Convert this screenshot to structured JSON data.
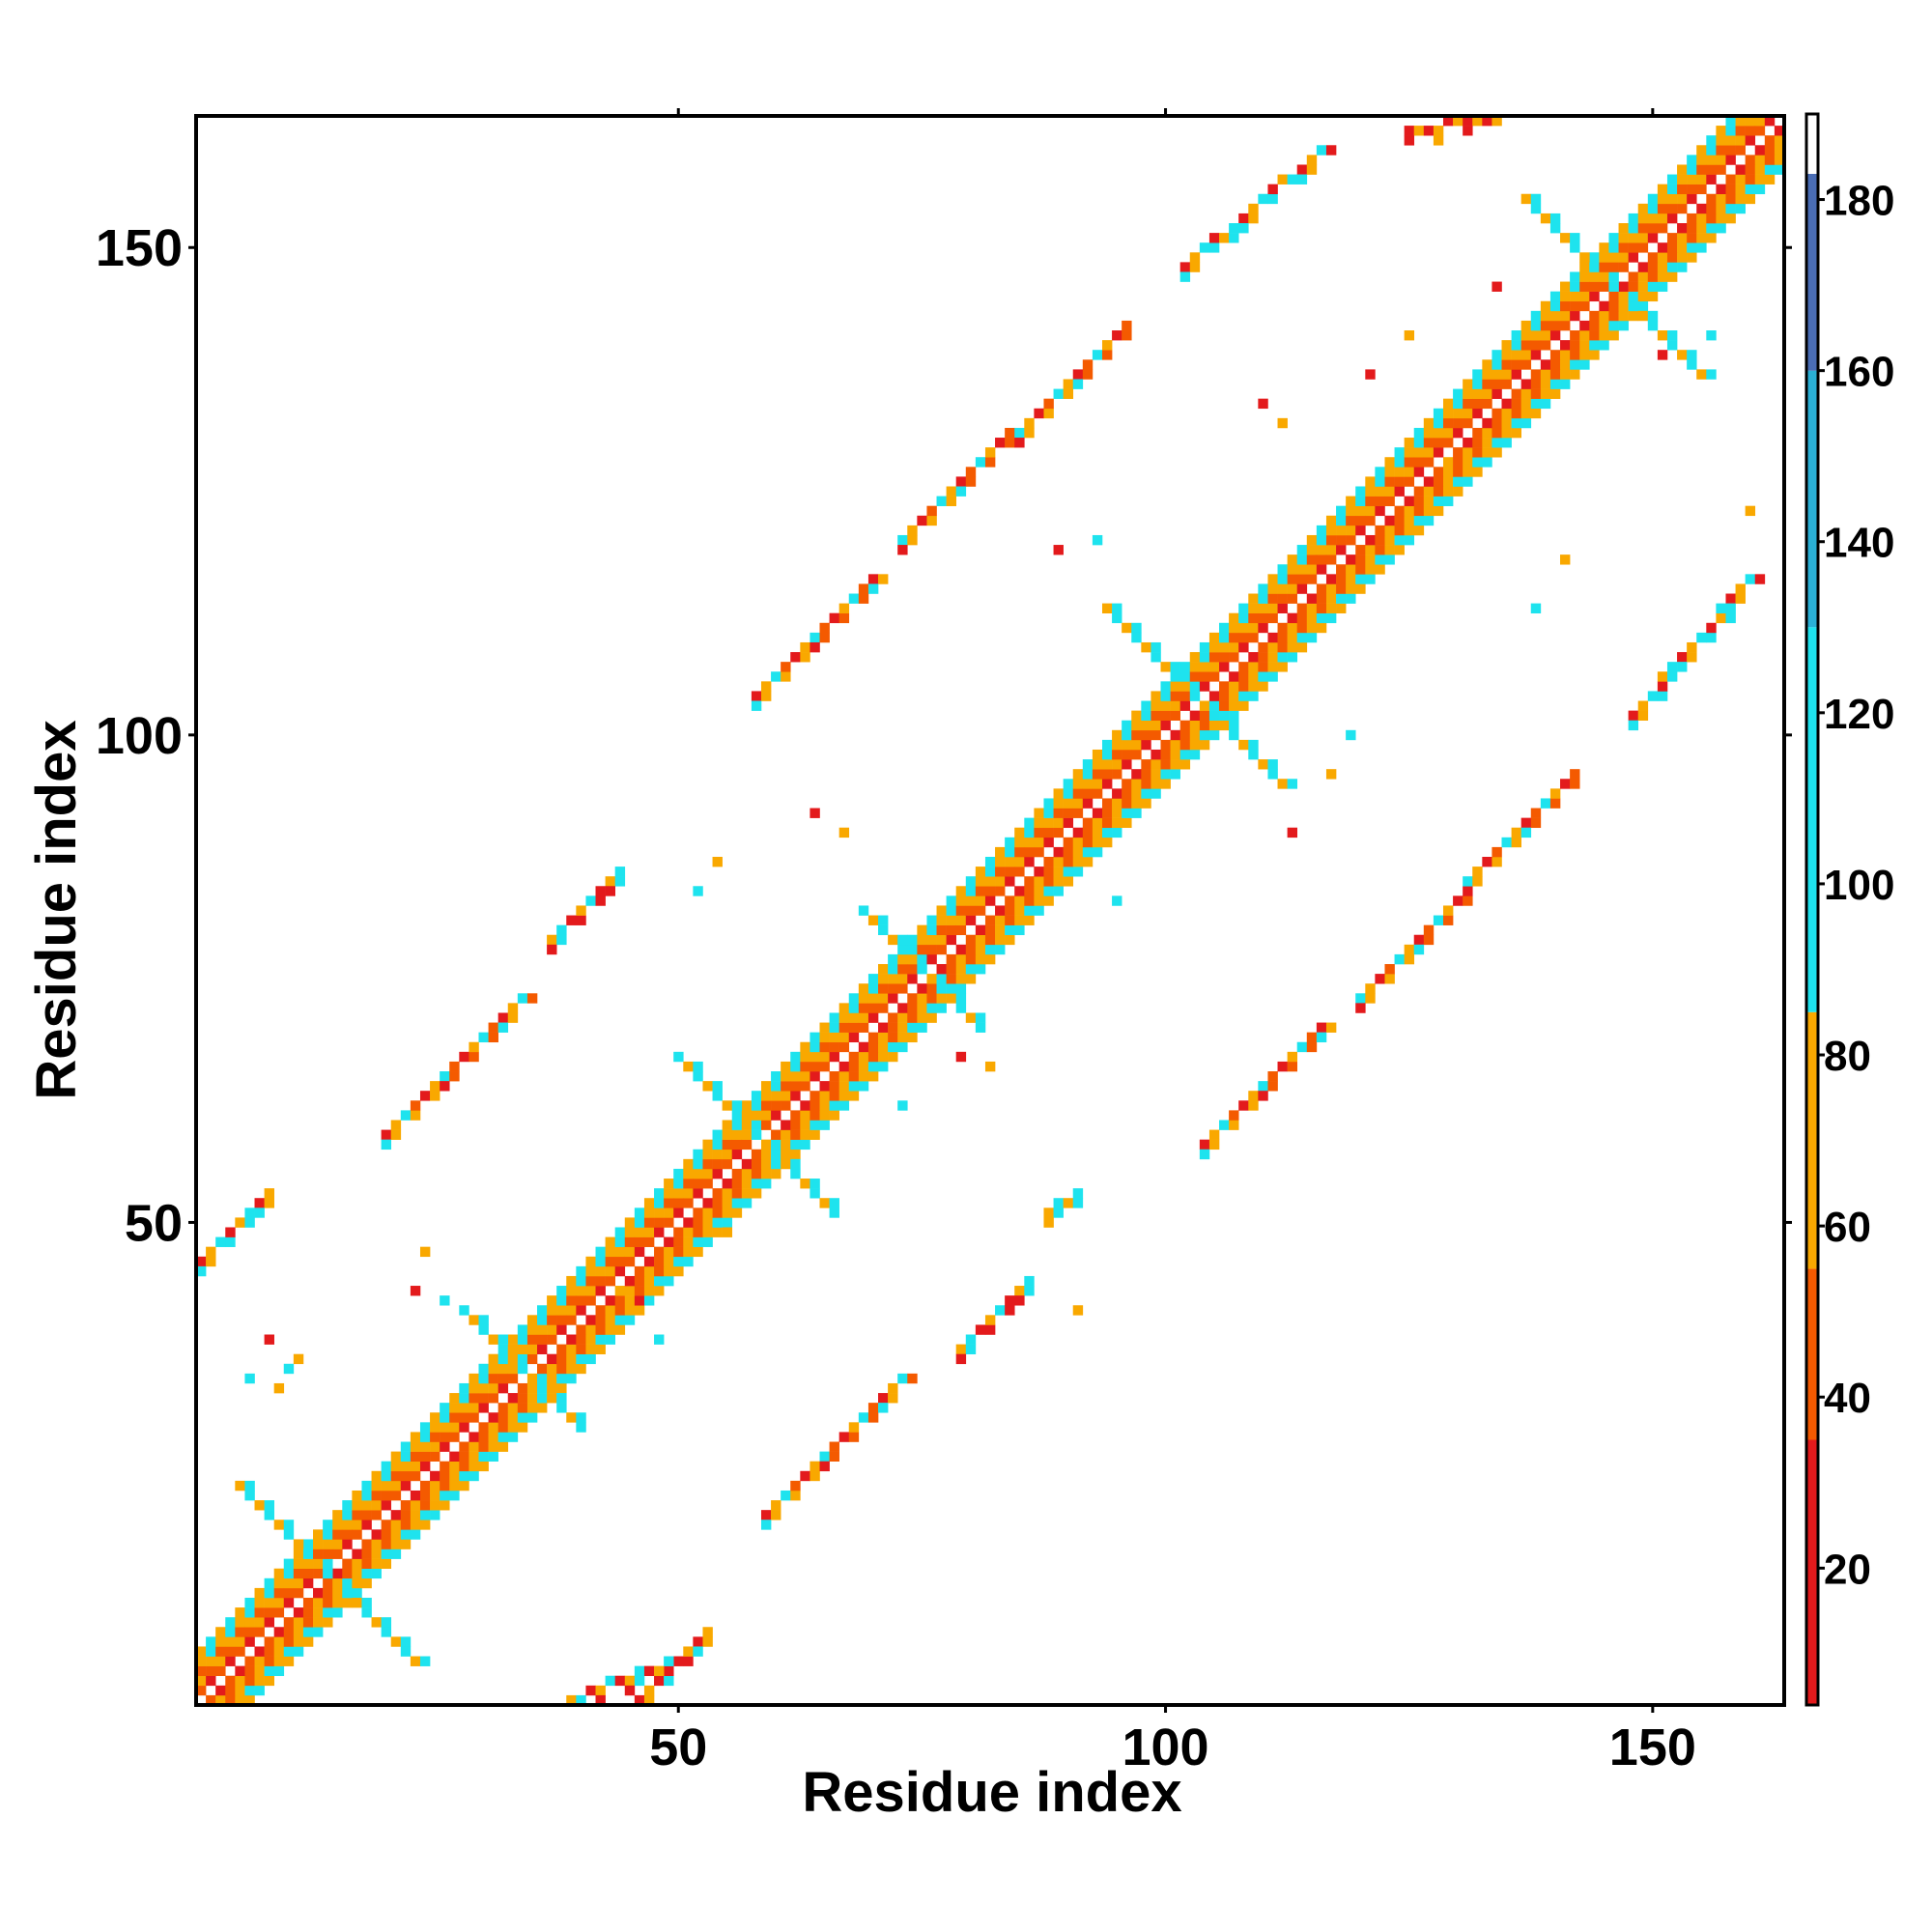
{
  "chart_data": {
    "type": "heatmap",
    "title": "",
    "xlabel": "Residue index",
    "ylabel": "Residue index",
    "xlim": [
      0.5,
      163.5
    ],
    "ylim": [
      0.5,
      163.5
    ],
    "x_ticks": [
      50,
      100,
      150
    ],
    "y_ticks": [
      50,
      100,
      150
    ],
    "x_tick_labels": [
      "50",
      "100",
      "150"
    ],
    "y_tick_labels": [
      "50",
      "100",
      "150"
    ],
    "grid": false,
    "legend": "colorbar right",
    "colorbar": {
      "range": [
        4,
        190
      ],
      "ticks": [
        20,
        40,
        60,
        80,
        100,
        120,
        140,
        160,
        180
      ],
      "tick_labels": [
        "20",
        "40",
        "60",
        "80",
        "100",
        "120",
        "140",
        "160",
        "180"
      ],
      "colors": [
        {
          "from": 4,
          "to": 35,
          "color": "#e31a1c"
        },
        {
          "from": 35,
          "to": 55,
          "color": "#f45a00"
        },
        {
          "from": 55,
          "to": 85,
          "color": "#f9a800"
        },
        {
          "from": 85,
          "to": 130,
          "color": "#1ee3ee"
        },
        {
          "from": 130,
          "to": 160,
          "color": "#2ab0d6"
        },
        {
          "from": 160,
          "to": 183,
          "color": "#4a6db5"
        },
        {
          "from": 183,
          "to": 190,
          "color": "#ffffff"
        }
      ]
    },
    "diagonal": {
      "from": 1,
      "to": 163,
      "bands": [
        {
          "offset": 1,
          "value": 15
        },
        {
          "offset": 2,
          "value": 40
        },
        {
          "offset": 3,
          "value": 70
        },
        {
          "offset": 4,
          "value": 105
        },
        {
          "offset": 5,
          "value": 110
        }
      ]
    },
    "segments": [
      {
        "from": [
          20,
          59
        ],
        "to": [
          34,
          73
        ],
        "values": [
          20,
          70,
          110,
          40
        ]
      },
      {
        "from": [
          37,
          79
        ],
        "to": [
          44,
          86
        ],
        "values": [
          70,
          110,
          20
        ]
      },
      {
        "from": [
          58,
          104
        ],
        "to": [
          70,
          116
        ],
        "values": [
          20,
          70,
          110,
          40
        ]
      },
      {
        "from": [
          73,
          120
        ],
        "to": [
          96,
          142
        ],
        "values": [
          110,
          70,
          20,
          40
        ]
      },
      {
        "from": [
          102,
          148
        ],
        "to": [
          116,
          160
        ],
        "values": [
          20,
          70,
          110
        ]
      },
      {
        "from": [
          125,
          162
        ],
        "to": [
          133,
          163
        ],
        "values": [
          20,
          70
        ]
      },
      {
        "from": [
          59,
          20
        ],
        "to": [
          73,
          34
        ],
        "values": [
          20,
          70,
          110,
          40
        ]
      },
      {
        "from": [
          79,
          37
        ],
        "to": [
          86,
          44
        ],
        "values": [
          70,
          110,
          20
        ]
      },
      {
        "from": [
          104,
          58
        ],
        "to": [
          116,
          70
        ],
        "values": [
          20,
          70,
          110,
          40
        ]
      },
      {
        "from": [
          120,
          73
        ],
        "to": [
          142,
          96
        ],
        "values": [
          110,
          70,
          20,
          40
        ]
      },
      {
        "from": [
          148,
          102
        ],
        "to": [
          160,
          116
        ],
        "values": [
          20,
          70,
          110
        ]
      },
      {
        "from": [
          1,
          46
        ],
        "to": [
          8,
          53
        ],
        "values": [
          20,
          70,
          110
        ]
      },
      {
        "from": [
          46,
          1
        ],
        "to": [
          53,
          8
        ],
        "values": [
          20,
          70,
          110
        ]
      },
      {
        "from": [
          39,
          1
        ],
        "to": [
          52,
          6
        ],
        "values": [
          70,
          110,
          20
        ]
      },
      {
        "from": [
          88,
          51
        ],
        "to": [
          91,
          53
        ],
        "values": [
          70,
          110
        ]
      }
    ],
    "crosses": [
      {
        "center": [
          14,
          14
        ],
        "arm": 9,
        "values": [
          110,
          70
        ]
      },
      {
        "center": [
          34,
          35
        ],
        "arm": 6,
        "values": [
          110,
          70
        ]
      },
      {
        "center": [
          58,
          59
        ],
        "arm": 8,
        "values": [
          110,
          70
        ]
      },
      {
        "center": [
          75,
          76
        ],
        "arm": 6,
        "values": [
          110,
          70
        ]
      },
      {
        "center": [
          103,
          104
        ],
        "arm": 9,
        "values": [
          110,
          70
        ]
      },
      {
        "center": [
          146,
          146
        ],
        "arm": 9,
        "values": [
          110,
          70
        ]
      }
    ],
    "scatter_points": [
      [
        10,
        35,
        110
      ],
      [
        11,
        36,
        70
      ],
      [
        8,
        38,
        20
      ],
      [
        6,
        34,
        110
      ],
      [
        9,
        33,
        70
      ],
      [
        23,
        43,
        20
      ],
      [
        24,
        47,
        70
      ],
      [
        26,
        42,
        110
      ],
      [
        33,
        31,
        70
      ],
      [
        35,
        30,
        110
      ],
      [
        48,
        38,
        110
      ],
      [
        46,
        42,
        20
      ],
      [
        44,
        43,
        70
      ],
      [
        50,
        51,
        20
      ],
      [
        55,
        49,
        70
      ],
      [
        64,
        92,
        20
      ],
      [
        67,
        90,
        70
      ],
      [
        89,
        119,
        20
      ],
      [
        93,
        120,
        110
      ],
      [
        110,
        134,
        20
      ],
      [
        112,
        132,
        70
      ],
      [
        121,
        137,
        20
      ],
      [
        125,
        141,
        70
      ],
      [
        129,
        128,
        70
      ],
      [
        134,
        146,
        20
      ],
      [
        138,
        113,
        110
      ],
      [
        141,
        118,
        70
      ],
      [
        151,
        139,
        20
      ],
      [
        156,
        141,
        110
      ],
      [
        160,
        123,
        70
      ],
      [
        79,
        67,
        20
      ],
      [
        82,
        66,
        70
      ],
      [
        73,
        62,
        110
      ],
      [
        91,
        41,
        70
      ],
      [
        95,
        83,
        110
      ],
      [
        113,
        90,
        20
      ],
      [
        117,
        96,
        70
      ],
      [
        119,
        100,
        110
      ],
      [
        52,
        84,
        110
      ],
      [
        54,
        87,
        70
      ]
    ]
  }
}
